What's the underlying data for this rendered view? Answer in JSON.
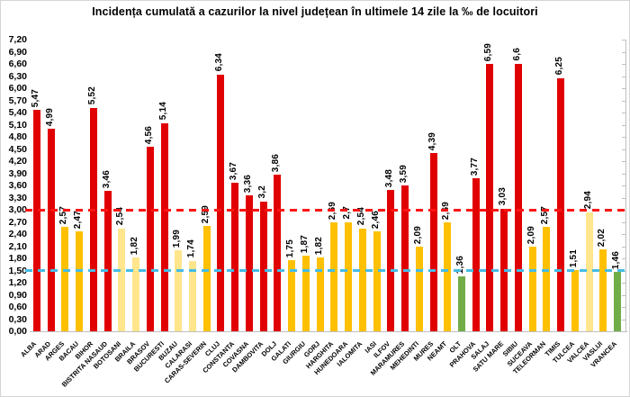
{
  "chart_data": {
    "type": "bar",
    "title": "Incidența cumulată a cazurilor la nivel județean în ultimele 14 zile la ‰ de locuitori",
    "xlabel": "",
    "ylabel": "",
    "ylim": [
      0,
      7.2
    ],
    "ytick_step": 0.3,
    "ytick_labels": [
      "0,00",
      "0,30",
      "0,60",
      "0,90",
      "1,20",
      "1,50",
      "1,80",
      "2,10",
      "2,40",
      "2,70",
      "3,00",
      "3,30",
      "3,60",
      "3,90",
      "4,20",
      "4,50",
      "4,80",
      "5,10",
      "5,40",
      "5,70",
      "6,00",
      "6,30",
      "6,60",
      "6,90",
      "7,20"
    ],
    "grid": false,
    "legend": null,
    "categories": [
      "ALBA",
      "ARAD",
      "ARGES",
      "BACAU",
      "BIHOR",
      "BISTRITA NASAUD",
      "BOTOSANI",
      "BRAILA",
      "BRASOV",
      "BUCURESTI",
      "BUZAU",
      "CALARASI",
      "CARAS-SEVERIN",
      "CLUJ",
      "CONSTANTA",
      "COVASNA",
      "DAMBOVITA",
      "DOLJ",
      "GALATI",
      "GIURGIU",
      "GORJ",
      "HARGHITA",
      "HUNEDOARA",
      "IALOMITA",
      "IASI",
      "ILFOV",
      "MARAMURES",
      "MEHEDINTI",
      "MURES",
      "NEAMT",
      "OLT",
      "PRAHOVA",
      "SALAJ",
      "SATU MARE",
      "SIBIU",
      "SUCEAVA",
      "TELEORMAN",
      "TIMIS",
      "TULCEA",
      "VALCEA",
      "VASLUI",
      "VRANCEA"
    ],
    "values": [
      5.47,
      4.99,
      2.57,
      2.47,
      5.52,
      3.46,
      2.54,
      1.82,
      4.56,
      5.14,
      1.99,
      1.74,
      2.59,
      6.34,
      3.67,
      3.36,
      3.2,
      3.86,
      1.75,
      1.87,
      1.82,
      2.69,
      2.7,
      2.54,
      2.46,
      3.48,
      3.59,
      2.09,
      4.39,
      2.69,
      1.36,
      3.77,
      6.59,
      3.03,
      6.6,
      2.09,
      2.57,
      6.25,
      1.51,
      2.94,
      2.02,
      1.46
    ],
    "value_labels": [
      "5,47",
      "4,99",
      "2,57",
      "2,47",
      "5,52",
      "3,46",
      "2,54",
      "1,82",
      "4,56",
      "5,14",
      "1,99",
      "1,74",
      "2,59",
      "6,34",
      "3,67",
      "3,36",
      "3,2",
      "3,86",
      "1,75",
      "1,87",
      "1,82",
      "2,69",
      "2,7",
      "2,54",
      "2,46",
      "3,48",
      "3,59",
      "2,09",
      "4,39",
      "2,69",
      "1,36",
      "3,77",
      "6,59",
      "3,03",
      "6,6",
      "2,09",
      "2,57",
      "6,25",
      "1,51",
      "2,94",
      "2,02",
      "1,46"
    ],
    "bar_colors": [
      "red",
      "red",
      "yellow",
      "yellow",
      "red",
      "red",
      "lightyellow",
      "lightyellow",
      "red",
      "red",
      "lightyellow",
      "lightyellow",
      "yellow",
      "red",
      "red",
      "red",
      "red",
      "red",
      "yellow",
      "yellow",
      "yellow",
      "yellow",
      "yellow",
      "yellow",
      "yellow",
      "red",
      "red",
      "yellow",
      "red",
      "yellow",
      "green",
      "red",
      "red",
      "red",
      "red",
      "yellow",
      "yellow",
      "red",
      "yellow",
      "lightyellow",
      "yellow",
      "green"
    ],
    "color_map": {
      "red": "#e00000",
      "yellow": "#ffc000",
      "lightyellow": "#ffe58c",
      "green": "#70ad47"
    },
    "thresholds": [
      {
        "value": 3.0,
        "color": "#ff1414",
        "name": "red-threshold-3.00"
      },
      {
        "value": 1.5,
        "color": "#45bce5",
        "name": "blue-threshold-1.50"
      }
    ]
  }
}
